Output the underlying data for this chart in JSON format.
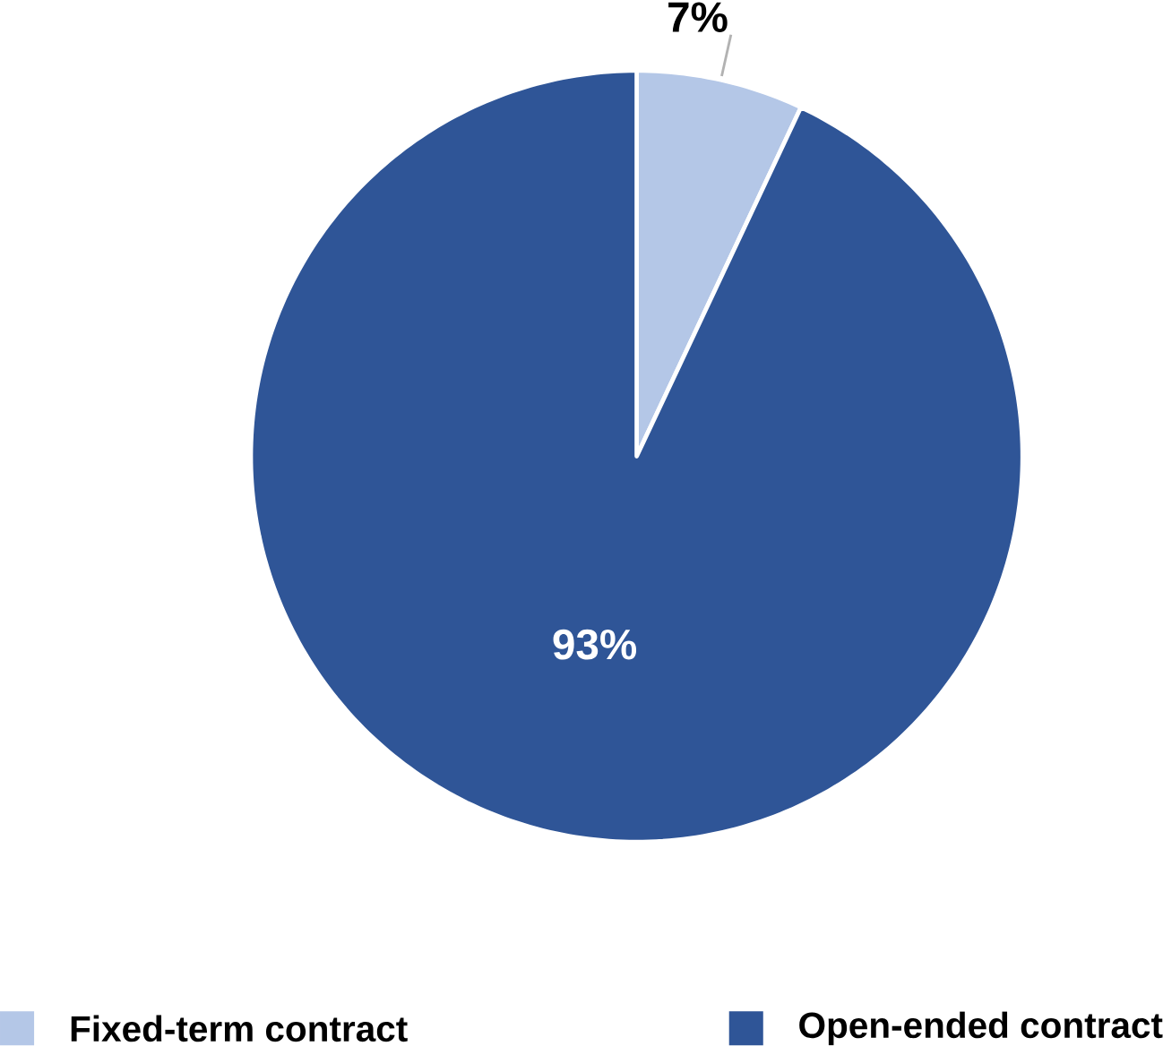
{
  "chart_data": {
    "type": "pie",
    "categories": [
      "Fixed-term contract",
      "Open-ended contract"
    ],
    "values": [
      7,
      93
    ],
    "value_labels": [
      "7%",
      "93%"
    ],
    "colors": [
      "#b4c7e7",
      "#2f5597"
    ],
    "legend": "bottom"
  }
}
